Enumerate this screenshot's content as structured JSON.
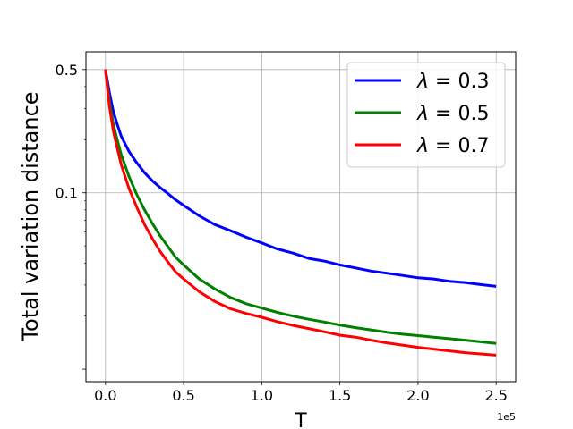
{
  "chart_data": {
    "type": "line",
    "title": "",
    "xlabel": "T",
    "ylabel": "Total variation distance",
    "x_scale_note": "1e5",
    "xlim": [
      -12500,
      262500
    ],
    "ylim": [
      0.0085,
      0.63
    ],
    "yscale": "log",
    "grid": true,
    "legend_position": "top-right",
    "x_ticks": [
      {
        "value": 0,
        "label": "0.0"
      },
      {
        "value": 50000,
        "label": "0.5"
      },
      {
        "value": 100000,
        "label": "1.0"
      },
      {
        "value": 150000,
        "label": "1.5"
      },
      {
        "value": 200000,
        "label": "2.0"
      },
      {
        "value": 250000,
        "label": "2.5"
      }
    ],
    "y_ticks": [
      {
        "value": 0.5,
        "label": "0.5"
      },
      {
        "value": 0.1,
        "label": "0.1"
      },
      {
        "value": 0.01,
        "label": ""
      }
    ],
    "x": [
      0,
      2500,
      5000,
      7500,
      10000,
      15000,
      20000,
      25000,
      30000,
      35000,
      40000,
      45000,
      50000,
      60000,
      70000,
      80000,
      90000,
      100000,
      110000,
      120000,
      130000,
      140000,
      150000,
      160000,
      170000,
      180000,
      190000,
      200000,
      210000,
      220000,
      230000,
      240000,
      250000
    ],
    "series": [
      {
        "name": "λ = 0.3",
        "legend_prefix": "λ",
        "legend_value": " = 0.3",
        "color": "#0000ff",
        "values": [
          0.5,
          0.37,
          0.29,
          0.245,
          0.21,
          0.172,
          0.148,
          0.13,
          0.117,
          0.107,
          0.099,
          0.091,
          0.085,
          0.074,
          0.066,
          0.061,
          0.056,
          0.052,
          0.048,
          0.0455,
          0.0425,
          0.041,
          0.039,
          0.0375,
          0.036,
          0.035,
          0.034,
          0.033,
          0.0325,
          0.0315,
          0.031,
          0.0302,
          0.0295
        ]
      },
      {
        "name": "λ = 0.5",
        "legend_prefix": "λ",
        "legend_value": " = 0.5",
        "color": "#008000",
        "values": [
          0.5,
          0.33,
          0.245,
          0.2,
          0.165,
          0.124,
          0.098,
          0.08,
          0.067,
          0.057,
          0.0495,
          0.043,
          0.039,
          0.0325,
          0.0285,
          0.0255,
          0.0235,
          0.0222,
          0.021,
          0.02,
          0.0192,
          0.0185,
          0.0178,
          0.0172,
          0.0167,
          0.0162,
          0.0158,
          0.0155,
          0.0152,
          0.0149,
          0.0146,
          0.0143,
          0.014
        ]
      },
      {
        "name": "λ = 0.7",
        "legend_prefix": "λ",
        "legend_value": " = 0.7",
        "color": "#ff0000",
        "values": [
          0.5,
          0.31,
          0.225,
          0.18,
          0.145,
          0.106,
          0.083,
          0.066,
          0.055,
          0.0465,
          0.0405,
          0.0355,
          0.0325,
          0.0275,
          0.0242,
          0.022,
          0.0207,
          0.0197,
          0.0186,
          0.0177,
          0.017,
          0.0163,
          0.0156,
          0.0152,
          0.0146,
          0.0141,
          0.0137,
          0.0133,
          0.013,
          0.0127,
          0.0124,
          0.0122,
          0.012
        ]
      }
    ]
  }
}
